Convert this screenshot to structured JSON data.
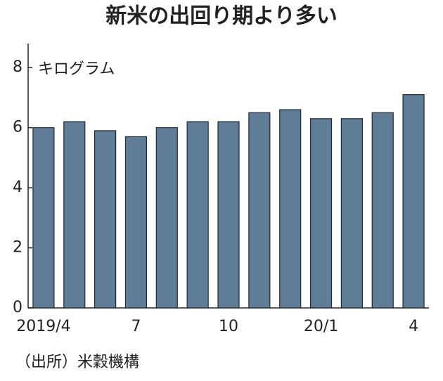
{
  "chart_data": {
    "type": "bar",
    "title": "新米の出回り期より多い",
    "y_unit_label": "キログラム",
    "source": "（出所）米穀機構",
    "categories": [
      "2019/4",
      null,
      null,
      "7",
      null,
      null,
      "10",
      null,
      null,
      "20/1",
      null,
      null,
      "4"
    ],
    "values": [
      6.0,
      6.2,
      5.9,
      5.7,
      6.0,
      6.2,
      6.2,
      6.5,
      6.6,
      6.3,
      6.3,
      6.5,
      7.1
    ],
    "color": "#5f7d97",
    "ylim": [
      0,
      8.8
    ],
    "yticks": [
      0,
      2,
      4,
      6,
      8
    ],
    "grid": false
  }
}
